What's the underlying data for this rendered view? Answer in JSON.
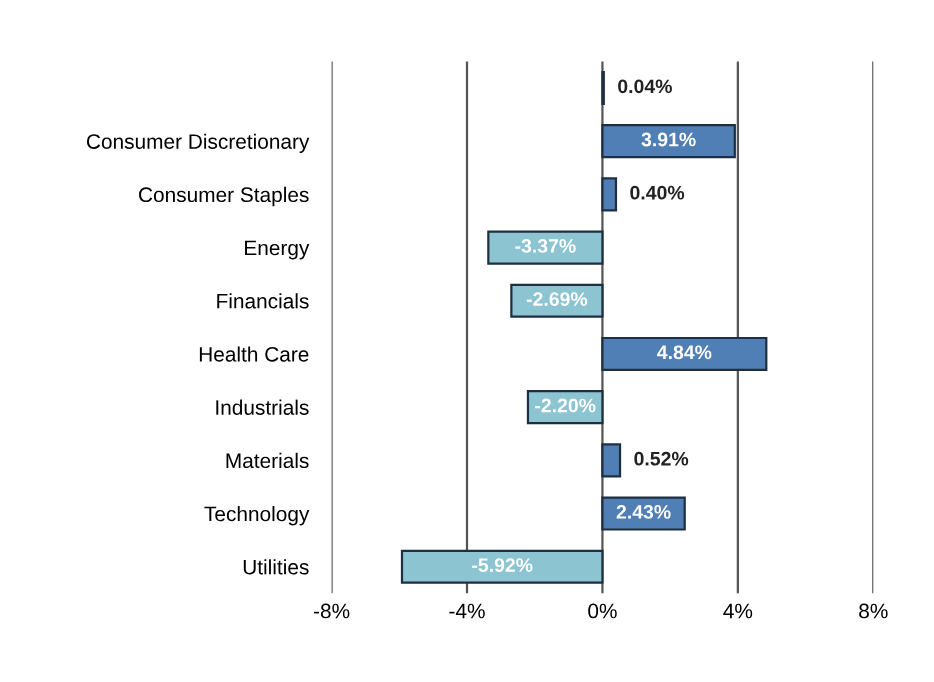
{
  "chart_data": {
    "type": "bar",
    "orientation": "horizontal",
    "categories": [
      null,
      "Consumer Discretionary",
      "Consumer Staples",
      "Energy",
      "Financials",
      "Health Care",
      "Industrials",
      "Materials",
      "Technology",
      "Utilities"
    ],
    "values": [
      0.04,
      3.91,
      0.4,
      -3.37,
      -2.69,
      4.84,
      -2.2,
      0.52,
      2.43,
      -5.92
    ],
    "colors": [
      "#4f7fb5",
      "#4f7fb5",
      "#4f7fb5",
      "#8cc4d2",
      "#8cc4d2",
      "#4f7fb5",
      "#8cc4d2",
      "#4f7fb5",
      "#4f7fb5",
      "#8cc4d2"
    ],
    "value_labels": [
      "0.04%",
      "3.91%",
      "0.40%",
      "-3.37%",
      "-2.69%",
      "4.84%",
      "-2.20%",
      "0.52%",
      "2.43%",
      "-5.92%"
    ],
    "xlim": [
      -8,
      8
    ],
    "xticks": [
      {
        "value": -8,
        "label": "-8%"
      },
      {
        "value": -4,
        "label": "-4%"
      },
      {
        "value": 0,
        "label": "0%"
      },
      {
        "value": 4,
        "label": "4%"
      },
      {
        "value": 8,
        "label": "8%"
      }
    ],
    "grid": "x",
    "legend": false
  }
}
